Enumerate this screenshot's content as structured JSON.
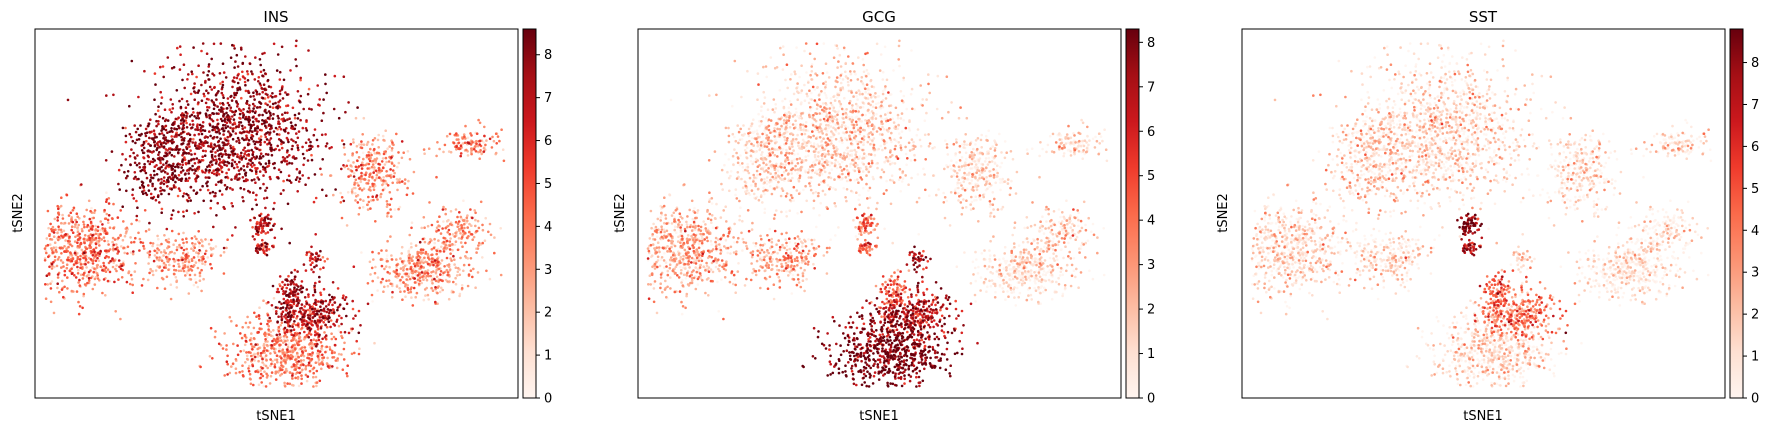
{
  "chart_data": [
    {
      "type": "scatter",
      "title": "INS",
      "xlabel": "tSNE1",
      "ylabel": "tSNE2",
      "x_ticks": "none",
      "y_ticks": "none",
      "grid": false,
      "colormap": "Reds",
      "colorbar": {
        "min": 0,
        "max": 8.6,
        "ticks": [
          0,
          1,
          2,
          3,
          4,
          5,
          6,
          7,
          8
        ]
      }
    },
    {
      "type": "scatter",
      "title": "GCG",
      "xlabel": "tSNE1",
      "ylabel": "tSNE2",
      "x_ticks": "none",
      "y_ticks": "none",
      "grid": false,
      "colormap": "Reds",
      "colorbar": {
        "min": 0,
        "max": 8.3,
        "ticks": [
          0,
          1,
          2,
          3,
          4,
          5,
          6,
          7,
          8
        ]
      }
    },
    {
      "type": "scatter",
      "title": "SST",
      "xlabel": "tSNE1",
      "ylabel": "tSNE2",
      "x_ticks": "none",
      "y_ticks": "none",
      "grid": false,
      "colormap": "Reds",
      "colorbar": {
        "min": 0,
        "max": 8.8,
        "ticks": [
          0,
          1,
          2,
          3,
          4,
          5,
          6,
          7,
          8
        ]
      }
    }
  ],
  "colors": {
    "low": "#fff5f0",
    "mid": "#fb6a4a",
    "high": "#67000d",
    "frame": "#000000"
  }
}
